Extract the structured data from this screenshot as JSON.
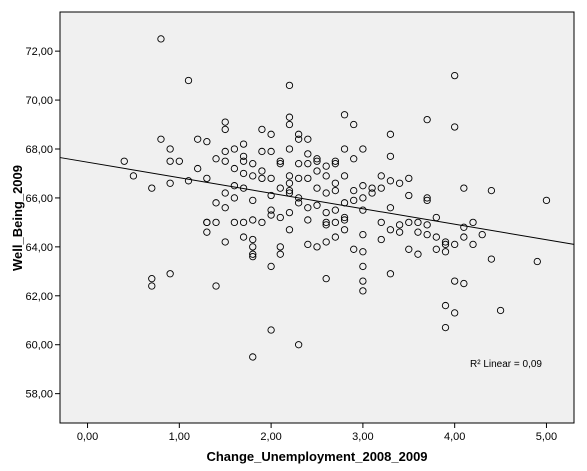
{
  "chart_data": {
    "type": "scatter",
    "xlabel": "Change_Unemployment_2008_2009",
    "ylabel": "Well_Being_2009",
    "xlim": [
      -0.3,
      5.3
    ],
    "ylim": [
      56.8,
      73.6
    ],
    "x_ticks": [
      "0,00",
      "1,00",
      "2,00",
      "3,00",
      "4,00",
      "5,00"
    ],
    "x_tick_values": [
      0,
      1,
      2,
      3,
      4,
      5
    ],
    "y_ticks": [
      "58,00",
      "60,00",
      "62,00",
      "64,00",
      "66,00",
      "68,00",
      "70,00",
      "72,00"
    ],
    "y_tick_values": [
      58,
      60,
      62,
      64,
      66,
      68,
      70,
      72
    ],
    "grid": false,
    "annotation": "R² Linear = 0,09",
    "fit_line": {
      "x": [
        -0.3,
        5.3
      ],
      "y": [
        67.65,
        64.1
      ]
    },
    "colors": {
      "background": "#f0f0f0",
      "marker": "#000000",
      "line": "#000000"
    },
    "points": [
      [
        0.4,
        67.5
      ],
      [
        0.5,
        66.9
      ],
      [
        0.7,
        66.4
      ],
      [
        0.7,
        62.7
      ],
      [
        0.7,
        62.4
      ],
      [
        0.8,
        72.5
      ],
      [
        0.8,
        68.4
      ],
      [
        0.9,
        68.0
      ],
      [
        0.9,
        67.5
      ],
      [
        0.9,
        66.6
      ],
      [
        0.9,
        62.9
      ],
      [
        1.0,
        67.5
      ],
      [
        1.1,
        70.8
      ],
      [
        1.1,
        66.7
      ],
      [
        1.2,
        68.4
      ],
      [
        1.2,
        67.2
      ],
      [
        1.3,
        68.3
      ],
      [
        1.3,
        66.8
      ],
      [
        1.3,
        65.0
      ],
      [
        1.3,
        65.0
      ],
      [
        1.3,
        64.6
      ],
      [
        1.4,
        67.6
      ],
      [
        1.4,
        65.8
      ],
      [
        1.4,
        65.0
      ],
      [
        1.4,
        62.4
      ],
      [
        1.5,
        69.1
      ],
      [
        1.5,
        68.8
      ],
      [
        1.5,
        67.9
      ],
      [
        1.5,
        67.5
      ],
      [
        1.5,
        66.2
      ],
      [
        1.5,
        65.6
      ],
      [
        1.5,
        64.2
      ],
      [
        1.6,
        68.0
      ],
      [
        1.6,
        67.2
      ],
      [
        1.6,
        66.5
      ],
      [
        1.6,
        66.0
      ],
      [
        1.6,
        65.0
      ],
      [
        1.7,
        68.2
      ],
      [
        1.7,
        67.7
      ],
      [
        1.7,
        67.5
      ],
      [
        1.7,
        67.0
      ],
      [
        1.7,
        66.4
      ],
      [
        1.7,
        65.0
      ],
      [
        1.7,
        64.4
      ],
      [
        1.8,
        67.4
      ],
      [
        1.8,
        66.9
      ],
      [
        1.8,
        65.9
      ],
      [
        1.8,
        65.1
      ],
      [
        1.8,
        64.3
      ],
      [
        1.8,
        64.0
      ],
      [
        1.8,
        63.7
      ],
      [
        1.8,
        63.6
      ],
      [
        1.8,
        59.5
      ],
      [
        1.9,
        68.8
      ],
      [
        1.9,
        67.9
      ],
      [
        1.9,
        67.1
      ],
      [
        1.9,
        66.8
      ],
      [
        1.9,
        65.0
      ],
      [
        2.0,
        68.6
      ],
      [
        2.0,
        67.9
      ],
      [
        2.0,
        66.8
      ],
      [
        2.0,
        66.1
      ],
      [
        2.0,
        65.5
      ],
      [
        2.0,
        65.3
      ],
      [
        2.0,
        63.2
      ],
      [
        2.0,
        60.6
      ],
      [
        2.1,
        67.5
      ],
      [
        2.1,
        67.4
      ],
      [
        2.1,
        66.4
      ],
      [
        2.1,
        65.2
      ],
      [
        2.1,
        64.0
      ],
      [
        2.1,
        63.7
      ],
      [
        2.2,
        70.6
      ],
      [
        2.2,
        69.3
      ],
      [
        2.2,
        69.0
      ],
      [
        2.2,
        68.0
      ],
      [
        2.2,
        66.9
      ],
      [
        2.2,
        66.6
      ],
      [
        2.2,
        66.3
      ],
      [
        2.2,
        66.2
      ],
      [
        2.2,
        65.4
      ],
      [
        2.2,
        64.7
      ],
      [
        2.3,
        68.6
      ],
      [
        2.3,
        68.4
      ],
      [
        2.3,
        67.4
      ],
      [
        2.3,
        66.8
      ],
      [
        2.3,
        66.0
      ],
      [
        2.3,
        65.8
      ],
      [
        2.3,
        60.0
      ],
      [
        2.4,
        68.4
      ],
      [
        2.4,
        67.8
      ],
      [
        2.4,
        67.4
      ],
      [
        2.4,
        66.8
      ],
      [
        2.4,
        65.6
      ],
      [
        2.4,
        65.1
      ],
      [
        2.4,
        64.1
      ],
      [
        2.5,
        67.6
      ],
      [
        2.5,
        67.5
      ],
      [
        2.5,
        67.1
      ],
      [
        2.5,
        66.4
      ],
      [
        2.5,
        65.7
      ],
      [
        2.5,
        64.0
      ],
      [
        2.6,
        67.3
      ],
      [
        2.6,
        66.9
      ],
      [
        2.6,
        66.2
      ],
      [
        2.6,
        65.4
      ],
      [
        2.6,
        65.0
      ],
      [
        2.6,
        64.9
      ],
      [
        2.6,
        64.2
      ],
      [
        2.6,
        62.7
      ],
      [
        2.7,
        67.5
      ],
      [
        2.7,
        67.4
      ],
      [
        2.7,
        66.6
      ],
      [
        2.7,
        66.3
      ],
      [
        2.7,
        65.5
      ],
      [
        2.7,
        65.0
      ],
      [
        2.7,
        64.4
      ],
      [
        2.8,
        69.4
      ],
      [
        2.8,
        68.0
      ],
      [
        2.8,
        66.9
      ],
      [
        2.8,
        65.8
      ],
      [
        2.8,
        65.2
      ],
      [
        2.8,
        65.1
      ],
      [
        2.8,
        64.7
      ],
      [
        2.9,
        69.0
      ],
      [
        2.9,
        67.6
      ],
      [
        2.9,
        66.3
      ],
      [
        2.9,
        65.9
      ],
      [
        2.9,
        63.9
      ],
      [
        3.0,
        68.0
      ],
      [
        3.0,
        66.5
      ],
      [
        3.0,
        66.0
      ],
      [
        3.0,
        65.5
      ],
      [
        3.0,
        64.5
      ],
      [
        3.0,
        63.8
      ],
      [
        3.0,
        63.2
      ],
      [
        3.0,
        62.6
      ],
      [
        3.0,
        62.2
      ],
      [
        3.1,
        66.4
      ],
      [
        3.1,
        66.2
      ],
      [
        3.2,
        66.9
      ],
      [
        3.2,
        66.4
      ],
      [
        3.2,
        65.0
      ],
      [
        3.2,
        64.3
      ],
      [
        3.3,
        68.6
      ],
      [
        3.3,
        67.7
      ],
      [
        3.3,
        66.7
      ],
      [
        3.3,
        65.6
      ],
      [
        3.3,
        64.7
      ],
      [
        3.3,
        62.9
      ],
      [
        3.4,
        66.6
      ],
      [
        3.4,
        64.9
      ],
      [
        3.4,
        64.6
      ],
      [
        3.5,
        66.8
      ],
      [
        3.5,
        66.1
      ],
      [
        3.5,
        65.0
      ],
      [
        3.5,
        63.9
      ],
      [
        3.6,
        65.0
      ],
      [
        3.6,
        64.6
      ],
      [
        3.6,
        63.7
      ],
      [
        3.7,
        69.2
      ],
      [
        3.7,
        66.0
      ],
      [
        3.7,
        65.9
      ],
      [
        3.7,
        64.9
      ],
      [
        3.7,
        64.5
      ],
      [
        3.8,
        65.2
      ],
      [
        3.8,
        64.4
      ],
      [
        3.8,
        63.9
      ],
      [
        3.9,
        64.2
      ],
      [
        3.9,
        64.1
      ],
      [
        3.9,
        63.8
      ],
      [
        3.9,
        61.6
      ],
      [
        3.9,
        60.7
      ],
      [
        4.0,
        71.0
      ],
      [
        4.0,
        68.9
      ],
      [
        4.0,
        64.1
      ],
      [
        4.0,
        62.6
      ],
      [
        4.0,
        61.3
      ],
      [
        4.1,
        66.4
      ],
      [
        4.1,
        64.8
      ],
      [
        4.1,
        64.4
      ],
      [
        4.1,
        62.5
      ],
      [
        4.2,
        65.0
      ],
      [
        4.2,
        64.1
      ],
      [
        4.3,
        64.5
      ],
      [
        4.4,
        66.3
      ],
      [
        4.4,
        63.5
      ],
      [
        4.5,
        61.4
      ],
      [
        4.9,
        63.4
      ],
      [
        5.0,
        65.9
      ]
    ]
  }
}
